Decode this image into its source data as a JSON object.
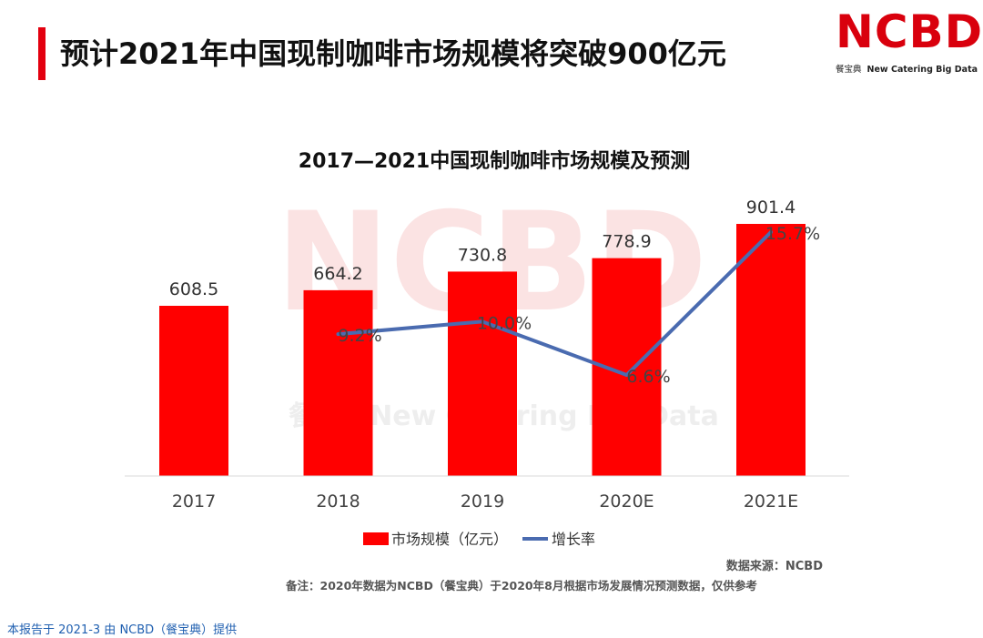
{
  "page": {
    "title": "预计2021年中国现制咖啡市场规模将突破900亿元",
    "logo_text": "NCBD",
    "logo_sub_cn": "餐宝典",
    "logo_sub_en": "New Catering Big Data",
    "watermark_cn": "餐宝典",
    "watermark_en": "New Catering Big Data",
    "source": "数据来源：NCBD",
    "note": "备注：2020年数据为NCBD（餐宝典）于2020年8月根据市场发展情况预测数据，仅供参考",
    "footer": "本报告于 2021-3 由 NCBD（餐宝典）提供"
  },
  "colors": {
    "accent": "#e3000f",
    "bar": "#ff0000",
    "line": "#4a6bb0",
    "watermark": "#f9dada",
    "footer": "#1f5fb0"
  },
  "chart_data": {
    "type": "bar",
    "title": "2017—2021中国现制咖啡市场规模及预测",
    "categories": [
      "2017",
      "2018",
      "2019",
      "2020E",
      "2021E"
    ],
    "series": [
      {
        "name": "市场规模（亿元）",
        "kind": "bar",
        "values": [
          608.5,
          664.2,
          730.8,
          778.9,
          901.4
        ],
        "labels": [
          "608.5",
          "664.2",
          "730.8",
          "778.9",
          "901.4"
        ]
      },
      {
        "name": "增长率",
        "kind": "line",
        "values": [
          null,
          9.2,
          10.0,
          6.6,
          15.7
        ],
        "labels": [
          "",
          "9.2%",
          "10.0%",
          "6.6%",
          "15.7%"
        ]
      }
    ],
    "xlabel": "",
    "ylabel": "",
    "ylim": [
      0,
      1000
    ],
    "y2lim": [
      0,
      20
    ],
    "grid": false,
    "legend": "bottom"
  }
}
